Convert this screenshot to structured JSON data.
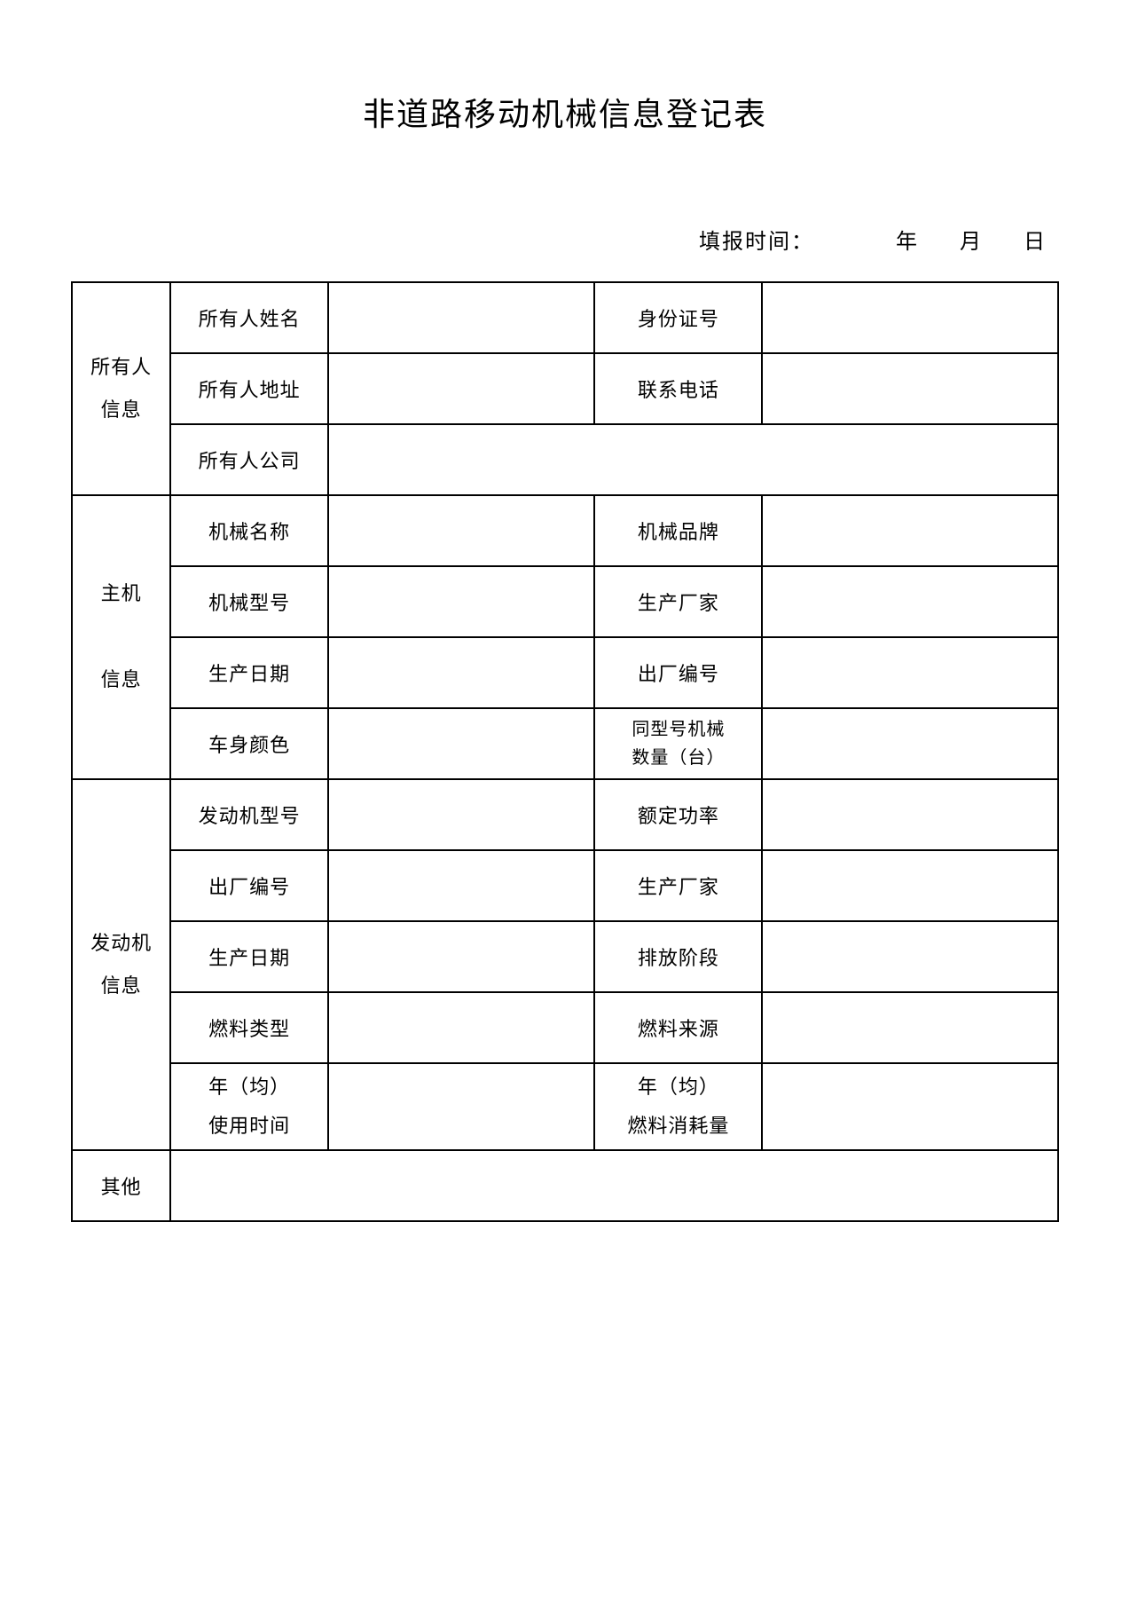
{
  "title": "非道路移动机械信息登记表",
  "reportTime": {
    "label": "填报时间：",
    "year": "年",
    "month": "月",
    "day": "日"
  },
  "sections": {
    "owner": {
      "header": "所有人\n信息",
      "rows": [
        {
          "labelA": "所有人姓名",
          "valueA": "",
          "labelB": "身份证号",
          "valueB": ""
        },
        {
          "labelA": "所有人地址",
          "valueA": "",
          "labelB": "联系电话",
          "valueB": ""
        },
        {
          "labelA": "所有人公司",
          "valueMerged": ""
        }
      ]
    },
    "machine": {
      "header": "主机\n\n信息",
      "rows": [
        {
          "labelA": "机械名称",
          "valueA": "",
          "labelB": "机械品牌",
          "valueB": ""
        },
        {
          "labelA": "机械型号",
          "valueA": "",
          "labelB": "生产厂家",
          "valueB": ""
        },
        {
          "labelA": "生产日期",
          "valueA": "",
          "labelB": "出厂编号",
          "valueB": ""
        },
        {
          "labelA": "车身颜色",
          "valueA": "",
          "labelB_line1": "同型号机械",
          "labelB_line2": "数量（台）",
          "valueB": ""
        }
      ]
    },
    "engine": {
      "header": "发动机\n信息",
      "rows": [
        {
          "labelA": "发动机型号",
          "valueA": "",
          "labelB": "额定功率",
          "valueB": ""
        },
        {
          "labelA": "出厂编号",
          "valueA": "",
          "labelB": "生产厂家",
          "valueB": ""
        },
        {
          "labelA": "生产日期",
          "valueA": "",
          "labelB": "排放阶段",
          "valueB": ""
        },
        {
          "labelA": "燃料类型",
          "valueA": "",
          "labelB": "燃料来源",
          "valueB": ""
        },
        {
          "labelA_line1": "年（均）",
          "labelA_line2": "使用时间",
          "valueA": "",
          "labelB_line1": "年（均）",
          "labelB_line2": "燃料消耗量",
          "valueB": ""
        }
      ]
    },
    "other": {
      "header": "其他",
      "value": ""
    }
  },
  "style": {
    "background_color": "#ffffff",
    "border_color": "#000000",
    "border_width": 2,
    "title_fontsize": 36,
    "cell_fontsize": 22,
    "small_fontsize": 20,
    "font_family": "SimSun"
  }
}
